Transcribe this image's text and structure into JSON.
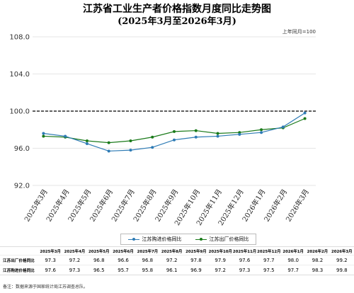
{
  "title": "江苏省工业生产者价格指数月度同比走势图",
  "subtitle": "(2025年3月至2026年3月)",
  "base_note": "上年同月=100",
  "footnote": "备注：数据来源于国家统计局江苏调查总队。",
  "colors": {
    "purchase": "#2e7bb5",
    "ex_factory": "#1a7a1a",
    "reference_line": "#000000",
    "grid": "#e6e6e6"
  },
  "table_header_blank": "",
  "chart_data": {
    "type": "line",
    "x": [
      "2025年3月",
      "2025年4月",
      "2025年5月",
      "2025年6月",
      "2025年7月",
      "2025年8月",
      "2025年9月",
      "2025年10月",
      "2025年11月",
      "2025年12月",
      "2026年1月",
      "2026年2月",
      "2026年3月"
    ],
    "y_ticks": [
      "92.0",
      "96.0",
      "100.0",
      "104.0",
      "108.0"
    ],
    "ylim": [
      92,
      108
    ],
    "reference_line": 100,
    "grid": true,
    "legend_position": "bottom",
    "series": [
      {
        "key": "purchase",
        "name": "江苏购进价格同比",
        "table_label": "江苏购进价格同比",
        "marker": "circle",
        "values": [
          97.6,
          97.3,
          96.5,
          95.7,
          95.8,
          96.1,
          96.9,
          97.2,
          97.3,
          97.5,
          97.7,
          98.3,
          99.8
        ]
      },
      {
        "key": "ex_factory",
        "name": "江苏出厂价格同比",
        "table_label": "江苏出厂价格同比",
        "marker": "circle",
        "values": [
          97.3,
          97.2,
          96.8,
          96.6,
          96.8,
          97.2,
          97.8,
          97.9,
          97.6,
          97.7,
          98.0,
          98.2,
          99.2
        ]
      }
    ]
  }
}
